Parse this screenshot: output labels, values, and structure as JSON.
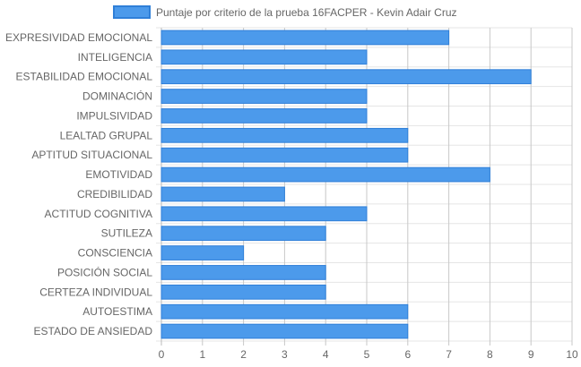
{
  "chart_data": {
    "type": "bar",
    "orientation": "horizontal",
    "categories": [
      "EXPRESIVIDAD EMOCIONAL",
      "INTELIGENCIA",
      "ESTABILIDAD EMOCIONAL",
      "DOMINACIÓN",
      "IMPULSIVIDAD",
      "LEALTAD GRUPAL",
      "APTITUD SITUACIONAL",
      "EMOTIVIDAD",
      "CREDIBILIDAD",
      "ACTITUD COGNITIVA",
      "SUTILEZA",
      "CONSCIENCIA",
      "POSICIÓN SOCIAL",
      "CERTEZA INDIVIDUAL",
      "AUTOESTIMA",
      "ESTADO DE ANSIEDAD"
    ],
    "series": [
      {
        "name": "Puntaje por criterio de la prueba 16FACPER - Kevin Adair Cruz",
        "values": [
          7,
          5,
          9,
          5,
          5,
          6,
          6,
          8,
          3,
          5,
          4,
          2,
          4,
          4,
          6,
          6
        ],
        "color": "#4c9aeb",
        "border_color": "#2f7fd8"
      }
    ],
    "xlim": [
      0,
      10
    ],
    "x_ticks": [
      "0",
      "1",
      "2",
      "3",
      "4",
      "5",
      "6",
      "7",
      "8",
      "9",
      "10"
    ],
    "grid": true,
    "legend_position": "top"
  }
}
